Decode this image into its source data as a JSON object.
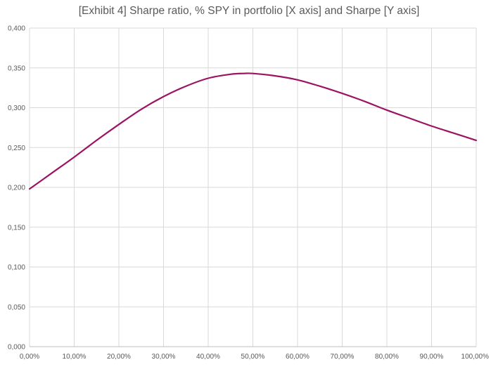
{
  "chart_data": {
    "type": "line",
    "title": "[Exhibit 4] Sharpe ratio, % SPY in portfolio [X axis] and Sharpe [Y axis]",
    "xlabel": "",
    "ylabel": "",
    "xlim": [
      0,
      100
    ],
    "ylim": [
      0,
      0.4
    ],
    "x_ticks": [
      "0,00%",
      "10,00%",
      "20,00%",
      "30,00%",
      "40,00%",
      "50,00%",
      "60,00%",
      "70,00%",
      "80,00%",
      "90,00%",
      "100,00%"
    ],
    "y_ticks": [
      "0,000",
      "0,050",
      "0,100",
      "0,150",
      "0,200",
      "0,250",
      "0,300",
      "0,350",
      "0,400"
    ],
    "grid": "vertical and horizontal",
    "legend": "none",
    "line_color": "#9b1464",
    "series": [
      {
        "x": [
          0,
          5,
          10,
          15,
          20,
          25,
          30,
          35,
          40,
          45,
          48,
          50,
          55,
          60,
          65,
          70,
          75,
          80,
          85,
          90,
          95,
          100
        ],
        "values": [
          0.198,
          0.218,
          0.238,
          0.259,
          0.279,
          0.298,
          0.314,
          0.327,
          0.337,
          0.342,
          0.343,
          0.343,
          0.34,
          0.335,
          0.327,
          0.318,
          0.308,
          0.297,
          0.287,
          0.277,
          0.268,
          0.259
        ]
      }
    ]
  }
}
